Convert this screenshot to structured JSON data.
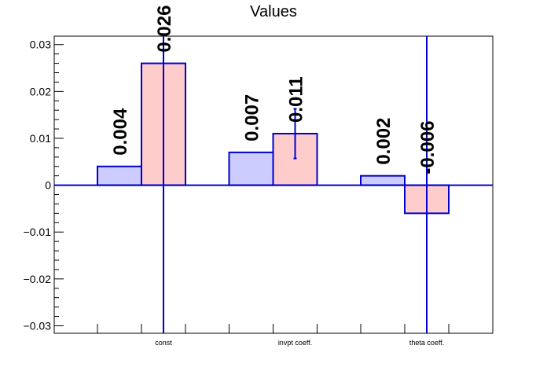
{
  "chart_data": {
    "type": "bar",
    "title": "Values",
    "categories": [
      "const",
      "invpt coeff.",
      "theta coeff."
    ],
    "series": [
      {
        "values": [
          0.004,
          0.007,
          0.002
        ],
        "labels": [
          "0.004",
          "0.007",
          "0.002"
        ],
        "errors": [
          0,
          0,
          0
        ],
        "color": "#ccccff"
      },
      {
        "values": [
          0.026,
          0.011,
          -0.006
        ],
        "labels": [
          "0.026",
          "0.011",
          "-0.006"
        ],
        "errors": [
          0.07,
          0.0053,
          0.07
        ],
        "color": "#ffcccc"
      }
    ],
    "yticks": [
      -0.03,
      -0.02,
      -0.01,
      0,
      0.01,
      0.02,
      0.03
    ],
    "ytick_labels": [
      "−0.03",
      "−0.02",
      "−0.01",
      "0",
      "0.01",
      "0.02",
      "0.03"
    ],
    "ylim": [
      -0.0316,
      0.0318
    ],
    "grid": false,
    "legend": "none",
    "bar_stroke_color": "#0000cc",
    "zero_line_color": "#0000cc"
  }
}
